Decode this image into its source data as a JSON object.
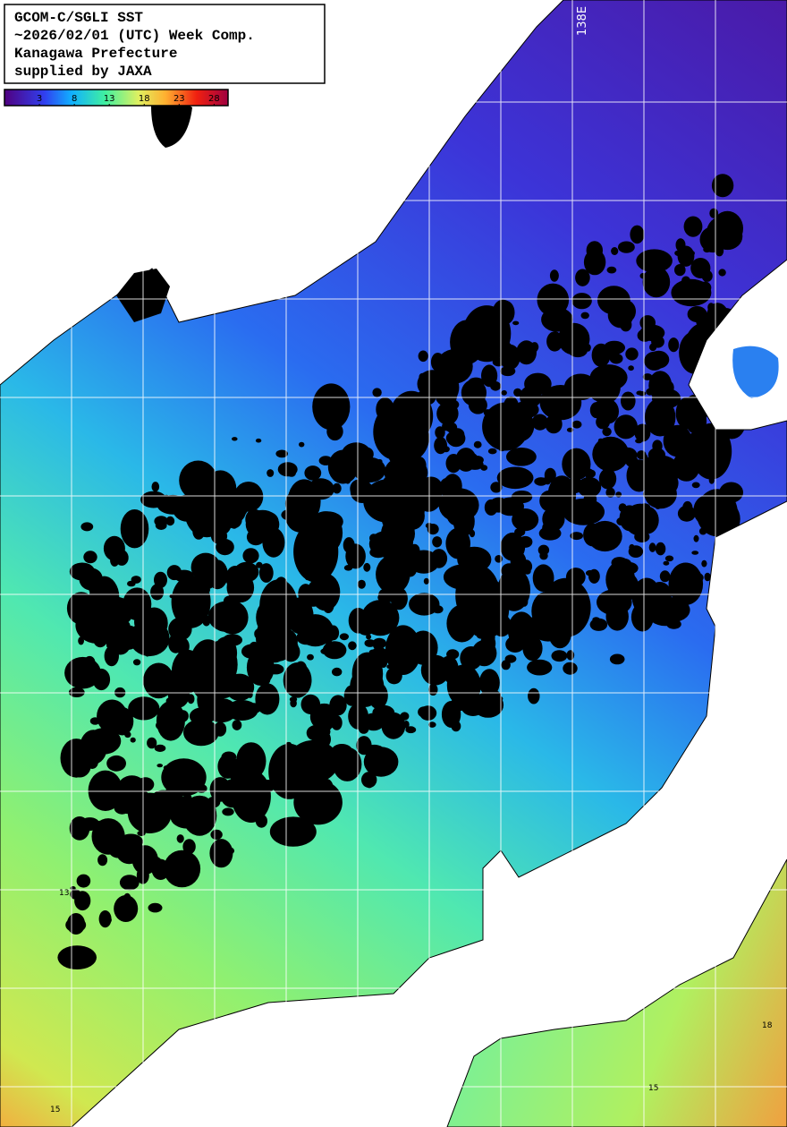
{
  "header": {
    "lines": [
      "GCOM-C/SGLI SST",
      "~2026/02/01 (UTC) Week Comp.",
      "Kanagawa Prefecture",
      "supplied by JAXA"
    ]
  },
  "colorbar": {
    "range": [
      -2,
      30
    ],
    "ticks": [
      3,
      8,
      13,
      18,
      23,
      28
    ]
  },
  "map": {
    "meridian_label": "138E",
    "contour_labels": [
      "13",
      "15",
      "15",
      "18"
    ]
  }
}
